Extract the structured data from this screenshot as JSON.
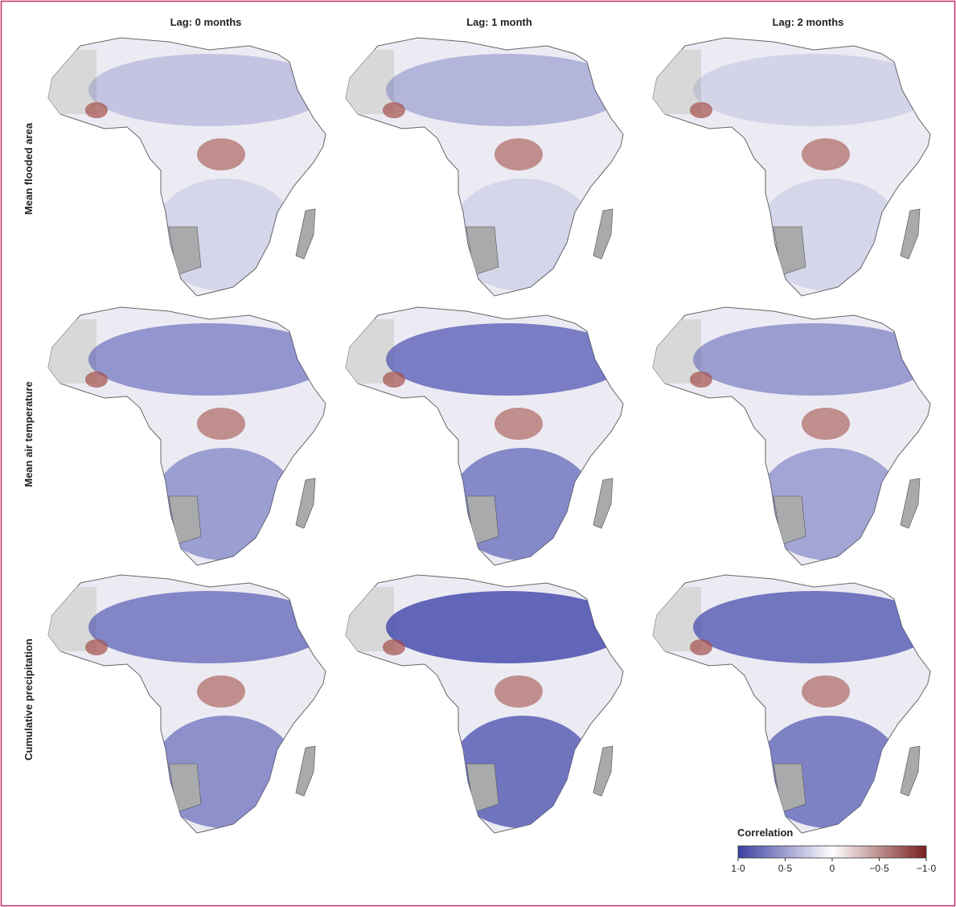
{
  "columns": [
    "Lag: 0 months",
    "Lag: 1 month",
    "Lag: 2 months"
  ],
  "rows": [
    "Mean flooded area",
    "Mean air temperature",
    "Cumulative precipitation"
  ],
  "legend": {
    "title": "Correlation",
    "lim": [
      1,
      -1
    ],
    "ticks": [
      {
        "value": 1,
        "label": "1·0"
      },
      {
        "value": 0.5,
        "label": "0·5"
      },
      0,
      {
        "value": -0.5,
        "label": "−0·5"
      },
      {
        "value": -1,
        "label": "−1·0"
      }
    ],
    "colors": [
      "#3b3fa0",
      "#ffffff",
      "#7a1f1f"
    ]
  }
}
